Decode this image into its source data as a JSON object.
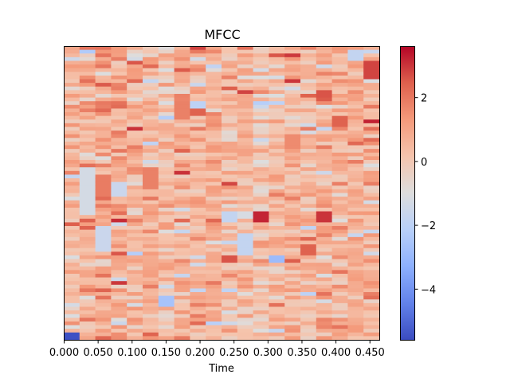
{
  "chart_data": {
    "type": "heatmap",
    "title": "MFCC",
    "xlabel": "Time",
    "ylabel": "",
    "colormap": "coolwarm",
    "n_frames": 20,
    "n_coeffs": 80,
    "frame_duration_s": 0.02322,
    "xlim": [
      0,
      0.4644
    ],
    "clim": [
      -5.6,
      3.6
    ],
    "x_ticks": [
      0.0,
      0.05,
      0.1,
      0.15,
      0.2,
      0.25,
      0.3,
      0.35,
      0.4,
      0.45
    ],
    "x_tick_labels": [
      "0.000",
      "0.050",
      "0.100",
      "0.150",
      "0.200",
      "0.250",
      "0.300",
      "0.350",
      "0.400",
      "0.450"
    ],
    "colorbar_ticks": [
      2,
      0,
      -2,
      -4
    ],
    "colorbar_tick_labels": [
      "2",
      "0",
      "−2",
      "−4"
    ],
    "value_summary": "Values mostly between -1 and 2 (light grey to salmon). Strong reds near mid-height around t=0.28 s and t=0.38 s; blue streaks at t=0.0 s (bottom row, about -5.5), t=0.15 s (near bottom, about -2.5) and t=0.3 s (about -2.8)."
  }
}
